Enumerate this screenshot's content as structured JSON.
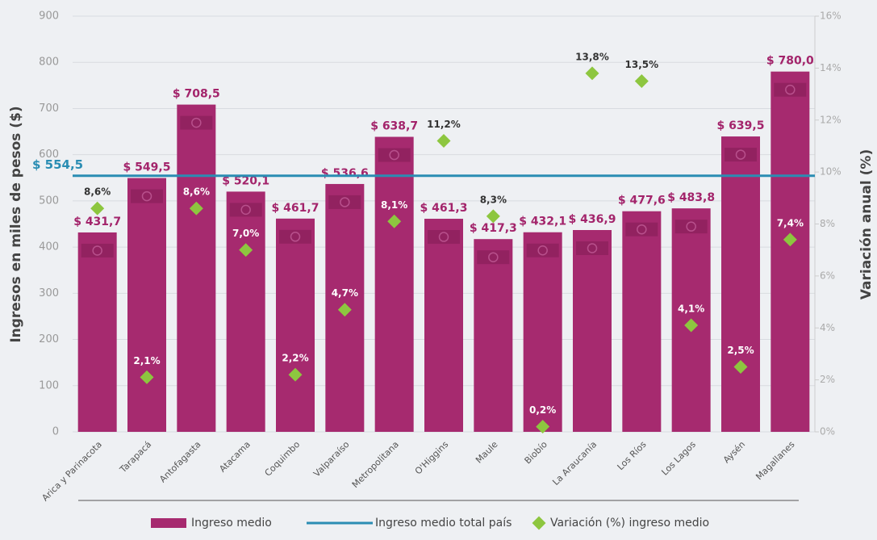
{
  "chart_data": {
    "type": "bar",
    "y_label": "Ingresos en miles de pesos ($)",
    "y2_label": "Variación anual (%)",
    "categories": [
      "Arica y Parinacota",
      "Tarapacá",
      "Antofagasta",
      "Atacama",
      "Coquimbo",
      "Valparaíso",
      "Metropolitana",
      "O'Higgins",
      "Maule",
      "Biobío",
      "La Araucanía",
      "Los Ríos",
      "Los Lagos",
      "Aysén",
      "Magallanes"
    ],
    "series": [
      {
        "name": "Ingreso medio",
        "color": "#a62a6f",
        "values": [
          431.7,
          549.5,
          708.5,
          520.1,
          461.7,
          536.6,
          638.7,
          461.3,
          417.3,
          432.1,
          436.9,
          477.6,
          483.8,
          639.5,
          780.0
        ],
        "value_labels": [
          "$ 431,7",
          "$ 549,5",
          "$ 708,5",
          "$ 520,1",
          "$ 461,7",
          "$ 536,6",
          "$ 638,7",
          "$ 461,3",
          "$ 417,3",
          "$ 432,1",
          "$ 436,9",
          "$ 477,6",
          "$ 483,8",
          "$ 639,5",
          "$ 780,0"
        ]
      },
      {
        "name": "Ingreso medio total país",
        "color": "#2a8db3",
        "value": 554.5,
        "value_label": "$ 554,5"
      },
      {
        "name": "Variación (%) ingreso medio",
        "color": "#8dc63f",
        "axis": "y2",
        "values": [
          8.6,
          2.1,
          8.6,
          7.0,
          2.2,
          4.7,
          8.1,
          11.2,
          8.3,
          0.2,
          13.8,
          13.5,
          4.1,
          2.5,
          7.4
        ],
        "value_labels": [
          "8,6%",
          "2,1%",
          "8,6%",
          "7,0%",
          "2,2%",
          "4,7%",
          "8,1%",
          "11,2%",
          "8,3%",
          "0,2%",
          "13,8%",
          "13,5%",
          "4,1%",
          "2,5%",
          "7,4%"
        ]
      }
    ],
    "ylim": [
      0,
      900
    ],
    "yticks": [
      0,
      100,
      200,
      300,
      400,
      500,
      600,
      700,
      800,
      900
    ],
    "y2lim": [
      0,
      16
    ],
    "y2ticks": [
      {
        "value": 0,
        "label": "0%"
      },
      {
        "value": 2,
        "label": "2%"
      },
      {
        "value": 4,
        "label": "4%"
      },
      {
        "value": 6,
        "label": "6%"
      },
      {
        "value": 8,
        "label": "8%"
      },
      {
        "value": 10,
        "label": "10%"
      },
      {
        "value": 12,
        "label": "12%"
      },
      {
        "value": 14,
        "label": "14%"
      },
      {
        "value": 16,
        "label": "16%"
      }
    ],
    "grid": true
  }
}
